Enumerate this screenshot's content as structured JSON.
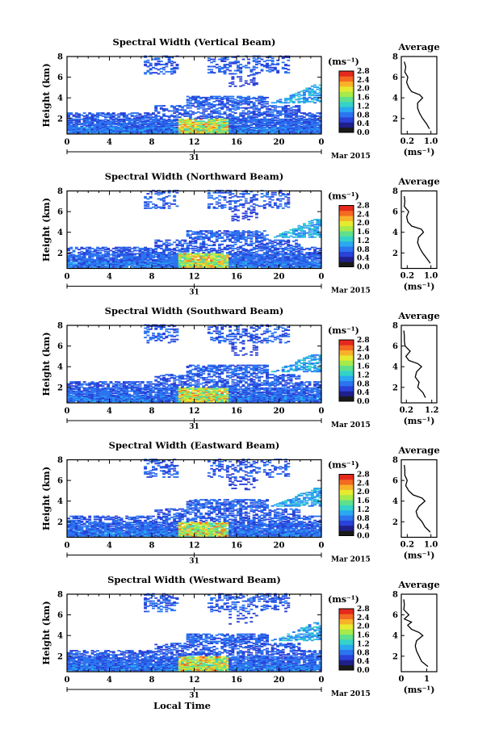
{
  "xlabel": "Local Time",
  "date_label": "Mar 2015",
  "day_label": "31",
  "ylabel": "Height (km)",
  "colorbar": {
    "unit": "(ms⁻¹)",
    "ticks": [
      "2.8",
      "2.4",
      "2.0",
      "1.6",
      "1.2",
      "0.8",
      "0.4",
      "0.0"
    ],
    "colors": [
      "#1a1a1a",
      "#20208c",
      "#2a42d8",
      "#2c74f0",
      "#2aa8f0",
      "#34d2c8",
      "#5fe08c",
      "#a6ea4c",
      "#e6ea30",
      "#f8b22a",
      "#f46a22",
      "#e42a1c"
    ]
  },
  "avg_title": "Average",
  "avg_unit": "(ms⁻¹)",
  "chart_data": [
    {
      "type": "heatmap",
      "title": "Spectral Width (Vertical Beam)",
      "xlabel": "Local Time",
      "ylabel": "Height (km)",
      "x_ticks": [
        "0",
        "4",
        "8",
        "12",
        "16",
        "20",
        "0"
      ],
      "y_ticks": [
        "2",
        "4",
        "6",
        "8"
      ],
      "xlim": [
        0,
        24
      ],
      "ylim": [
        0.5,
        8
      ],
      "avg_profile": {
        "xlabel": "(ms⁻¹)",
        "x_ticks": [
          "0.2",
          "1.0"
        ],
        "xlim": [
          0.0,
          1.2
        ],
        "y_ticks": [
          "2",
          "4",
          "6",
          "8"
        ],
        "height": [
          1.0,
          1.5,
          2.0,
          2.5,
          3.0,
          3.5,
          4.0,
          4.3,
          4.6,
          5.0,
          5.5,
          6.0,
          6.5,
          7.0,
          7.5
        ],
        "width": [
          0.95,
          0.85,
          0.72,
          0.62,
          0.55,
          0.55,
          0.72,
          0.62,
          0.35,
          0.25,
          0.18,
          0.22,
          0.12,
          0.15,
          0.1
        ]
      }
    },
    {
      "type": "heatmap",
      "title": "Spectral Width (Northward Beam)",
      "xlabel": "Local Time",
      "ylabel": "Height (km)",
      "x_ticks": [
        "0",
        "4",
        "8",
        "12",
        "16",
        "20",
        "0"
      ],
      "y_ticks": [
        "2",
        "4",
        "6",
        "8"
      ],
      "xlim": [
        0,
        24
      ],
      "ylim": [
        0.5,
        8
      ],
      "avg_profile": {
        "xlabel": "(ms⁻¹)",
        "x_ticks": [
          "0.2",
          "1.0"
        ],
        "xlim": [
          0.0,
          1.2
        ],
        "y_ticks": [
          "2",
          "4",
          "6",
          "8"
        ],
        "height": [
          1.0,
          1.5,
          2.0,
          2.5,
          3.0,
          3.5,
          4.0,
          4.3,
          4.6,
          5.0,
          5.5,
          6.0,
          6.5,
          7.0,
          7.5
        ],
        "width": [
          0.98,
          0.85,
          0.72,
          0.62,
          0.55,
          0.58,
          0.75,
          0.68,
          0.35,
          0.22,
          0.18,
          0.25,
          0.1,
          0.12,
          0.1
        ]
      }
    },
    {
      "type": "heatmap",
      "title": "Spectral Width (Southward Beam)",
      "xlabel": "Local Time",
      "ylabel": "Height (km)",
      "x_ticks": [
        "0",
        "4",
        "8",
        "12",
        "16",
        "20",
        "0"
      ],
      "y_ticks": [
        "2",
        "4",
        "6",
        "8"
      ],
      "xlim": [
        0,
        24
      ],
      "ylim": [
        0.5,
        8
      ],
      "avg_profile": {
        "xlabel": "(ms⁻¹)",
        "x_ticks": [
          "0.2",
          "1.2"
        ],
        "xlim": [
          0.0,
          1.4
        ],
        "y_ticks": [
          "2",
          "4",
          "6",
          "8"
        ],
        "height": [
          1.0,
          1.5,
          2.0,
          2.5,
          3.0,
          3.5,
          4.0,
          4.3,
          4.6,
          5.0,
          5.5,
          6.0,
          6.5,
          7.0,
          7.5
        ],
        "width": [
          0.95,
          0.85,
          0.65,
          0.7,
          0.55,
          0.6,
          0.8,
          0.65,
          0.3,
          0.18,
          0.35,
          0.15,
          0.12,
          0.12,
          0.1
        ]
      }
    },
    {
      "type": "heatmap",
      "title": "Spectral Width (Eastward Beam)",
      "xlabel": "Local Time",
      "ylabel": "Height (km)",
      "x_ticks": [
        "0",
        "4",
        "8",
        "12",
        "16",
        "20",
        "0"
      ],
      "y_ticks": [
        "2",
        "4",
        "6",
        "8"
      ],
      "xlim": [
        0,
        24
      ],
      "ylim": [
        0.5,
        8
      ],
      "avg_profile": {
        "xlabel": "(ms⁻¹)",
        "x_ticks": [
          "0.2",
          "1.0"
        ],
        "xlim": [
          0.0,
          1.2
        ],
        "y_ticks": [
          "2",
          "4",
          "6",
          "8"
        ],
        "height": [
          1.0,
          1.5,
          2.0,
          2.5,
          3.0,
          3.5,
          4.0,
          4.3,
          4.6,
          5.0,
          5.5,
          6.0,
          6.5,
          7.0,
          7.5
        ],
        "width": [
          0.98,
          0.8,
          0.7,
          0.55,
          0.5,
          0.6,
          0.8,
          0.7,
          0.4,
          0.25,
          0.15,
          0.2,
          0.12,
          0.12,
          0.1
        ]
      }
    },
    {
      "type": "heatmap",
      "title": "Spectral Width (Westward Beam)",
      "xlabel": "Local Time",
      "ylabel": "Height (km)",
      "x_ticks": [
        "0",
        "4",
        "8",
        "12",
        "16",
        "20",
        "0"
      ],
      "y_ticks": [
        "2",
        "4",
        "6",
        "8"
      ],
      "xlim": [
        0,
        24
      ],
      "ylim": [
        0.5,
        8
      ],
      "avg_profile": {
        "xlabel": "(ms⁻¹)",
        "x_ticks": [
          "0",
          "1"
        ],
        "xlim": [
          0.0,
          1.4
        ],
        "y_ticks": [
          "2",
          "4",
          "6",
          "8"
        ],
        "height": [
          1.0,
          1.5,
          2.0,
          2.5,
          3.0,
          3.5,
          4.0,
          4.3,
          4.6,
          5.0,
          5.3,
          5.6,
          6.0,
          6.5,
          7.0,
          7.5
        ],
        "width": [
          1.05,
          0.8,
          0.7,
          0.6,
          0.55,
          0.6,
          0.85,
          0.7,
          0.4,
          0.25,
          0.4,
          0.12,
          0.3,
          0.1,
          0.12,
          0.1
        ]
      }
    }
  ]
}
